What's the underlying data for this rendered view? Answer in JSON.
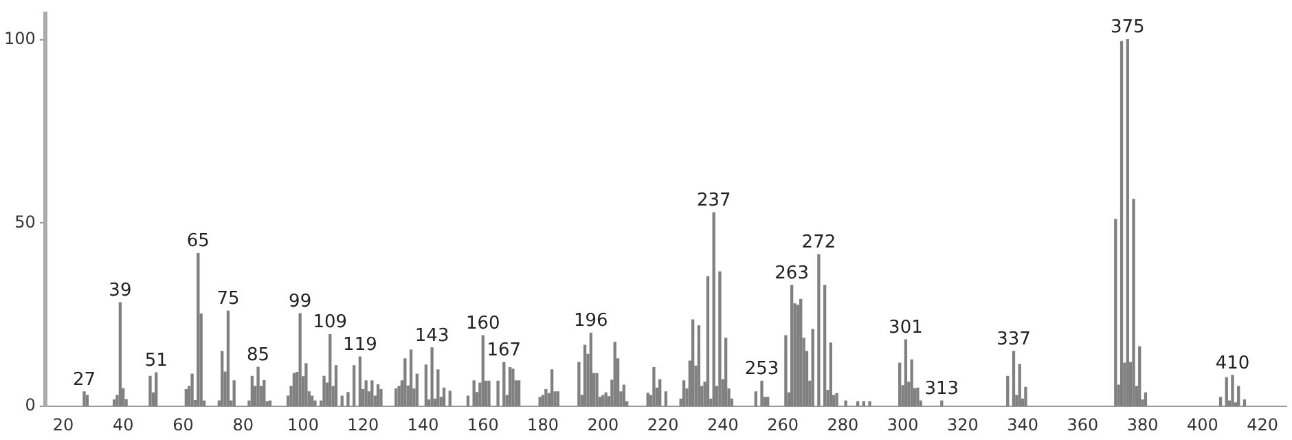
{
  "chart_data": {
    "type": "bar",
    "color": "#808080",
    "x": [
      27,
      28,
      37,
      38,
      39,
      40,
      41,
      49,
      50,
      51,
      61,
      62,
      63,
      64,
      65,
      66,
      67,
      72,
      73,
      74,
      75,
      76,
      77,
      82,
      83,
      84,
      85,
      86,
      87,
      88,
      89,
      95,
      96,
      97,
      98,
      99,
      100,
      101,
      102,
      103,
      104,
      106,
      107,
      108,
      109,
      110,
      111,
      113,
      115,
      117,
      119,
      120,
      121,
      122,
      123,
      124,
      125,
      126,
      131,
      132,
      133,
      134,
      135,
      136,
      137,
      138,
      141,
      142,
      143,
      144,
      145,
      146,
      147,
      149,
      155,
      157,
      158,
      159,
      160,
      161,
      162,
      165,
      167,
      168,
      169,
      170,
      171,
      172,
      179,
      180,
      181,
      182,
      183,
      184,
      185,
      192,
      193,
      194,
      195,
      196,
      197,
      198,
      199,
      200,
      201,
      202,
      203,
      204,
      205,
      206,
      207,
      208,
      215,
      216,
      217,
      218,
      219,
      221,
      226,
      227,
      228,
      229,
      230,
      231,
      232,
      233,
      234,
      235,
      236,
      237,
      238,
      239,
      240,
      241,
      242,
      243,
      251,
      253,
      254,
      255,
      261,
      262,
      263,
      264,
      265,
      266,
      267,
      268,
      269,
      270,
      272,
      274,
      275,
      276,
      277,
      278,
      281,
      285,
      287,
      289,
      299,
      300,
      301,
      302,
      303,
      304,
      305,
      306,
      313,
      335,
      337,
      338,
      339,
      340,
      341,
      371,
      372,
      373,
      374,
      375,
      376,
      377,
      378,
      379,
      380,
      381,
      406,
      408,
      409,
      410,
      411,
      412,
      414
    ],
    "values": [
      4,
      3,
      1.8,
      3,
      28.3,
      4.9,
      1.9,
      8.2,
      3.7,
      9.2,
      4.6,
      5.5,
      8.8,
      1.6,
      41.7,
      25.2,
      1.5,
      1.5,
      15,
      9.4,
      26,
      1.5,
      7,
      1.5,
      8.2,
      5.5,
      10.7,
      5.5,
      7.1,
      1.3,
      1.5,
      2.8,
      5.5,
      9,
      9.3,
      25.3,
      8.1,
      11.7,
      4,
      2.8,
      1.5,
      1.5,
      8.2,
      6.4,
      19.6,
      5.5,
      11.1,
      2.8,
      3.8,
      11.1,
      13.5,
      4.6,
      7,
      4,
      7,
      2.8,
      5.9,
      4.6,
      4.8,
      5.5,
      7,
      13,
      5.6,
      15.4,
      4.8,
      8.8,
      11.3,
      1.8,
      16,
      2,
      10,
      2.5,
      5,
      4.2,
      2.8,
      7,
      3.8,
      6.4,
      19.3,
      6.9,
      6.9,
      6.9,
      12,
      3,
      10.6,
      10.2,
      7,
      7,
      2.5,
      3,
      4.6,
      3.5,
      10,
      4,
      4,
      12,
      3,
      16.7,
      14.2,
      20,
      9,
      9,
      2.5,
      3,
      3.7,
      2.7,
      7.2,
      17.5,
      13,
      4,
      5.8,
      1.3,
      3.6,
      3,
      10.6,
      5,
      7.3,
      4,
      2,
      7,
      4.8,
      12.4,
      23.6,
      11,
      22,
      5.5,
      6.6,
      35.4,
      2,
      52.8,
      5.5,
      36.7,
      7.3,
      18.6,
      4.8,
      2,
      4,
      6.9,
      2.5,
      2.5,
      19.3,
      3.7,
      33,
      28,
      27.6,
      29.2,
      18.6,
      15,
      6.9,
      21,
      41.4,
      33,
      4.4,
      17.3,
      3,
      3.5,
      1.5,
      1.3,
      1.3,
      1.3,
      11.8,
      5.7,
      18.2,
      6.6,
      12.7,
      4.9,
      5,
      1.5,
      1.5,
      8.2,
      15,
      3,
      11.5,
      2,
      5.2,
      51,
      5.8,
      99.5,
      11.8,
      100,
      12,
      56.5,
      5.5,
      16.3,
      1.8,
      3.7,
      2.5,
      7.9,
      1.5,
      8.5,
      1,
      5.5,
      1.8
    ],
    "xlim": [
      14,
      428
    ],
    "xticks": [
      20,
      40,
      60,
      80,
      100,
      120,
      140,
      160,
      180,
      200,
      220,
      240,
      260,
      280,
      300,
      320,
      340,
      360,
      380,
      400,
      420
    ],
    "ylim": [
      0,
      107
    ],
    "yticks": [
      0,
      50,
      100
    ],
    "annotations": [
      {
        "text": "27",
        "x": 27,
        "y": 4
      },
      {
        "text": "39",
        "x": 39,
        "y": 28.3
      },
      {
        "text": "51",
        "x": 51,
        "y": 9.2
      },
      {
        "text": "65",
        "x": 65,
        "y": 41.7
      },
      {
        "text": "75",
        "x": 75,
        "y": 26
      },
      {
        "text": "85",
        "x": 85,
        "y": 10.7
      },
      {
        "text": "99",
        "x": 99,
        "y": 25.3
      },
      {
        "text": "109",
        "x": 109,
        "y": 19.6
      },
      {
        "text": "119",
        "x": 119,
        "y": 13.5
      },
      {
        "text": "143",
        "x": 143,
        "y": 16
      },
      {
        "text": "160",
        "x": 160,
        "y": 19.3
      },
      {
        "text": "167",
        "x": 167,
        "y": 12
      },
      {
        "text": "196",
        "x": 196,
        "y": 20
      },
      {
        "text": "237",
        "x": 237,
        "y": 52.8
      },
      {
        "text": "253",
        "x": 253,
        "y": 6.9
      },
      {
        "text": "263",
        "x": 263,
        "y": 33
      },
      {
        "text": "272",
        "x": 272,
        "y": 41.4
      },
      {
        "text": "301",
        "x": 301,
        "y": 18.2
      },
      {
        "text": "313",
        "x": 313,
        "y": 1.5
      },
      {
        "text": "337",
        "x": 337,
        "y": 15
      },
      {
        "text": "375",
        "x": 375,
        "y": 100
      },
      {
        "text": "410",
        "x": 410,
        "y": 8.5
      }
    ]
  }
}
